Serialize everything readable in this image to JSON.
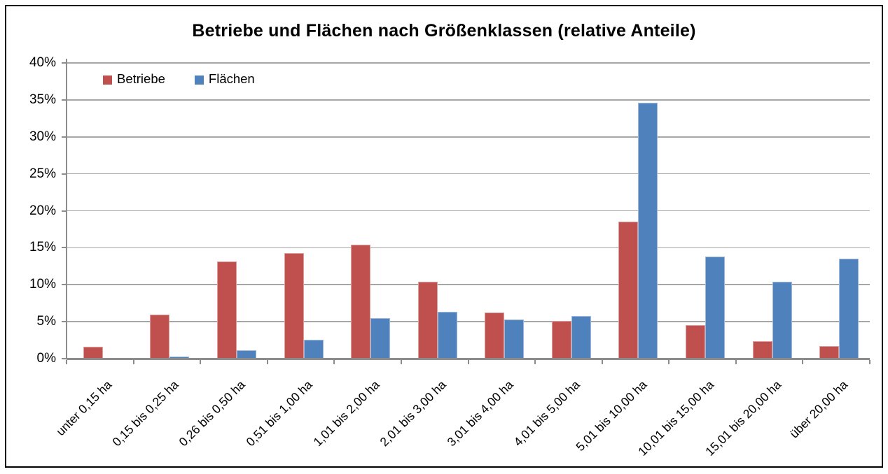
{
  "chart_data": {
    "type": "bar",
    "title": "Betriebe und Flächen nach Größenklassen (relative Anteile)",
    "categories": [
      "unter 0,15 ha",
      "0,15 bis 0,25 ha",
      "0,26 bis 0,50 ha",
      "0,51 bis 1,00 ha",
      "1,01 bis 2,00 ha",
      "2,01 bis 3,00 ha",
      "3,01 bis 4,00 ha",
      "4,01 bis 5,00 ha",
      "5,01 bis 10,00 ha",
      "10,01 bis 15,00 ha",
      "15,01 bis 20,00 ha",
      "über 20,00 ha"
    ],
    "series": [
      {
        "name": "Betriebe",
        "color": "#C0504D",
        "values": [
          1.6,
          6.0,
          13.1,
          14.3,
          15.4,
          10.4,
          6.2,
          5.1,
          18.5,
          4.5,
          2.4,
          1.7
        ]
      },
      {
        "name": "Flächen",
        "color": "#4F81BD",
        "values": [
          0.0,
          0.3,
          1.1,
          2.6,
          5.5,
          6.3,
          5.3,
          5.8,
          34.6,
          13.8,
          10.4,
          13.5
        ]
      }
    ],
    "xlabel": "",
    "ylabel": "",
    "ylim": [
      0,
      40
    ],
    "ytick_step": 5,
    "ytick_suffix": "%",
    "grid": true,
    "legend_position": "top-left"
  },
  "colors": {
    "series_betriebe": "#C0504D",
    "series_flaechen": "#4F81BD",
    "gridline": "#A6A6A6",
    "axis": "#8C8C8C",
    "frame_border": "#000000",
    "background": "#FFFFFF"
  }
}
